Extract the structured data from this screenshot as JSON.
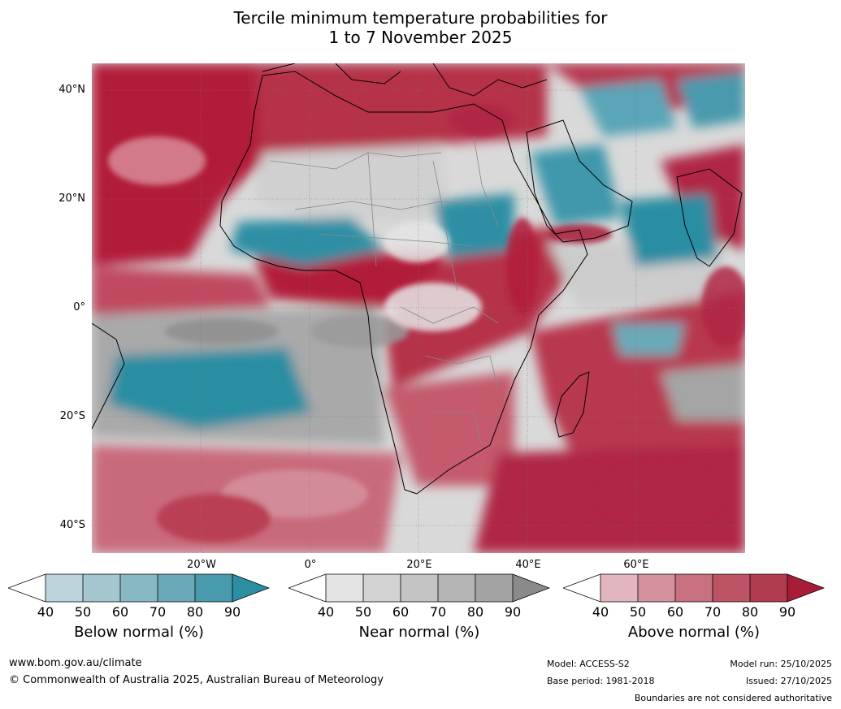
{
  "title": {
    "line1": "Tercile minimum temperature probabilities for",
    "line2": "1 to 7 November 2025"
  },
  "lat_labels": [
    "40°N",
    "20°N",
    "0°",
    "20°S",
    "40°S"
  ],
  "lon_labels": [
    "20°W",
    "0°",
    "20°E",
    "40°E",
    "60°E"
  ],
  "colorbars": [
    {
      "label": "Below normal (%)",
      "ticks": [
        "40",
        "50",
        "60",
        "70",
        "80",
        "90"
      ],
      "colors": [
        "#ffffff",
        "#bcd4dc",
        "#a3c6cf",
        "#88b8c4",
        "#6aa9b8",
        "#4a9aae",
        "#2b8ea3"
      ]
    },
    {
      "label": "Near normal (%)",
      "ticks": [
        "40",
        "50",
        "60",
        "70",
        "80",
        "90"
      ],
      "colors": [
        "#ffffff",
        "#e4e4e4",
        "#d3d3d3",
        "#c4c4c4",
        "#b4b4b4",
        "#a3a3a3",
        "#8a8a8a"
      ]
    },
    {
      "label": "Above normal (%)",
      "ticks": [
        "40",
        "50",
        "60",
        "70",
        "80",
        "90"
      ],
      "colors": [
        "#ffffff",
        "#e2b6bf",
        "#d5919e",
        "#c7707f",
        "#bc5466",
        "#b03a4e",
        "#a81c38"
      ]
    }
  ],
  "footer": {
    "url": "www.bom.gov.au/climate",
    "copyright": "© Commonwealth of Australia 2025, Australian Bureau of Meteorology",
    "model": "Model: ACCESS-S2",
    "base_period": "Base period: 1981-2018",
    "model_run": "Model run: 25/10/2025",
    "issued": "Issued: 27/10/2025",
    "disclaimer": "Boundaries are not considered authoritative"
  }
}
